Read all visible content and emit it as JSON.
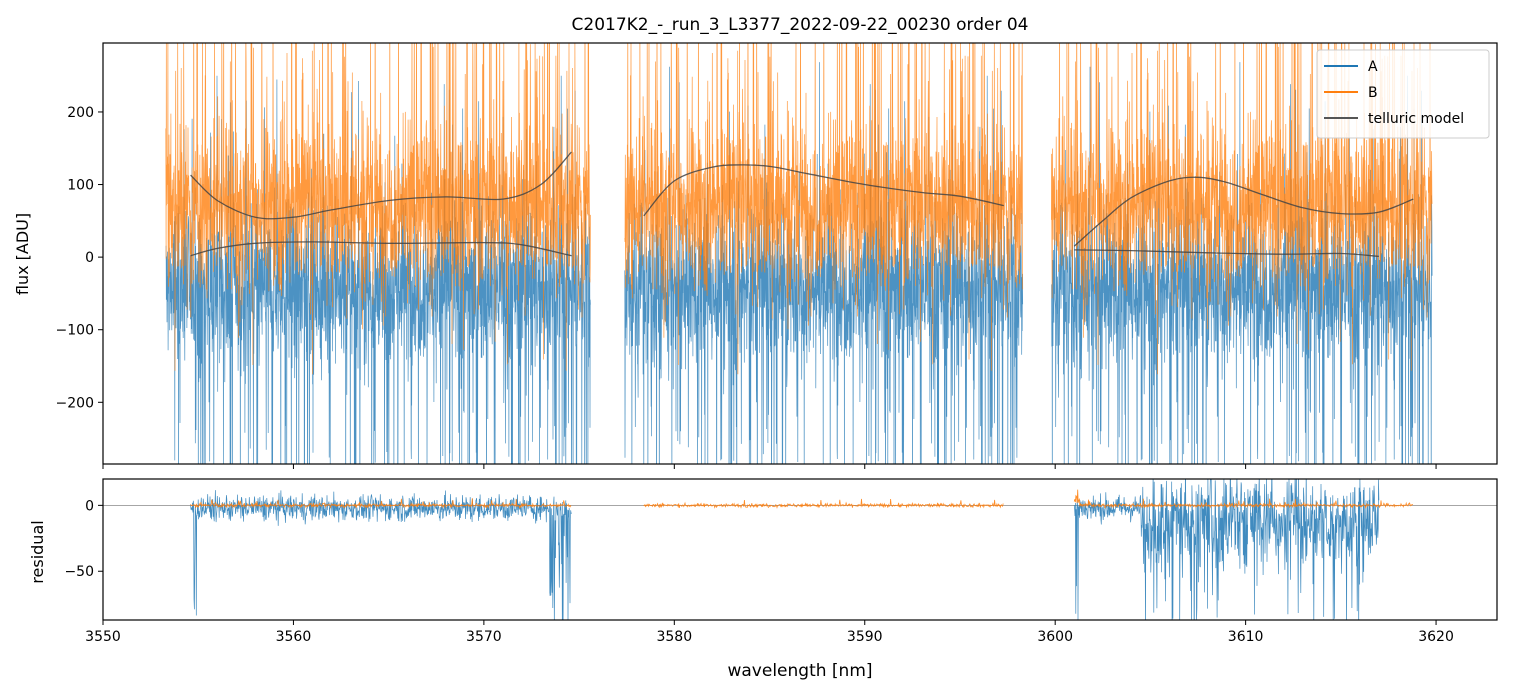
{
  "chart_data": [
    {
      "type": "line",
      "panel": "top",
      "title": "C2017K2_-_run_3_L3377_2022-09-22_00230  order 04",
      "xlabel": "",
      "ylabel": "flux [ADU]",
      "xlim": [
        3550,
        3623.2
      ],
      "ylim": [
        -285,
        295
      ],
      "yticks": [
        -200,
        -100,
        0,
        100,
        200
      ],
      "ytick_labels": [
        "−200",
        "−100",
        "0",
        "100",
        "200"
      ],
      "xticks": [
        3550,
        3560,
        3570,
        3580,
        3590,
        3600,
        3610,
        3620
      ],
      "legend": {
        "placement": "top-right",
        "entries": [
          "A",
          "B",
          "telluric model"
        ]
      },
      "series": [
        {
          "name": "A",
          "color": "#1f77b4",
          "segments": [
            [
              3553.3,
              3575.6
            ],
            [
              3577.4,
              3598.3
            ],
            [
              3599.8,
              3619.8
            ]
          ],
          "level": -40,
          "spread": 150
        },
        {
          "name": "B",
          "color": "#ff7f0e",
          "segments": [
            [
              3553.3,
              3575.6
            ],
            [
              3577.4,
              3598.3
            ],
            [
              3599.8,
              3619.8
            ]
          ],
          "level": 70,
          "spread": 160
        },
        {
          "name": "telluric model",
          "color": "#444444",
          "curves": [
            {
              "x": [
                3554.6,
                3556,
                3558,
                3560,
                3562,
                3565,
                3568,
                3571,
                3573,
                3574.6
              ],
              "y": [
                113,
                78,
                55,
                55,
                65,
                78,
                83,
                80,
                100,
                145
              ]
            },
            {
              "x": [
                3554.6,
                3556,
                3558,
                3561,
                3565,
                3570,
                3572,
                3574.6
              ],
              "y": [
                2,
                12,
                19,
                21,
                19,
                20,
                17,
                2
              ]
            },
            {
              "x": [
                3578.4,
                3580,
                3582,
                3583.5,
                3585,
                3587,
                3590,
                3593,
                3595,
                3597.3
              ],
              "y": [
                57,
                105,
                124,
                127,
                125,
                115,
                100,
                89,
                84,
                71
              ]
            },
            {
              "x": [
                3601,
                3602.5,
                3604,
                3606,
                3607.5,
                3609,
                3611,
                3613,
                3615,
                3617,
                3618.8
              ],
              "y": [
                15,
                50,
                82,
                105,
                110,
                103,
                85,
                68,
                60,
                62,
                80
              ]
            },
            {
              "x": [
                3601,
                3604,
                3608,
                3612,
                3615,
                3617
              ],
              "y": [
                10,
                9,
                6,
                4,
                5,
                1
              ]
            }
          ]
        }
      ]
    },
    {
      "type": "line",
      "panel": "bottom",
      "title": "",
      "xlabel": "wavelength [nm]",
      "ylabel": "residual",
      "xlim": [
        3550,
        3623.2
      ],
      "ylim": [
        -87,
        20
      ],
      "yticks": [
        -50,
        0
      ],
      "ytick_labels": [
        "−50",
        "0"
      ],
      "xticks": [
        3550,
        3560,
        3570,
        3580,
        3590,
        3600,
        3610,
        3620
      ],
      "xtick_labels": [
        "3550",
        "3560",
        "3570",
        "3580",
        "3590",
        "3600",
        "3610",
        "3620"
      ],
      "hline": 0,
      "series": [
        {
          "name": "A",
          "color": "#1f77b4",
          "segments": [
            [
              3554.6,
              3574.6
            ],
            [
              3601,
              3617
            ]
          ]
        },
        {
          "name": "B",
          "color": "#ff7f0e",
          "segments": [
            [
              3554.6,
              3574.6
            ],
            [
              3578.4,
              3597.3
            ],
            [
              3601,
              3618.8
            ]
          ]
        }
      ]
    }
  ]
}
